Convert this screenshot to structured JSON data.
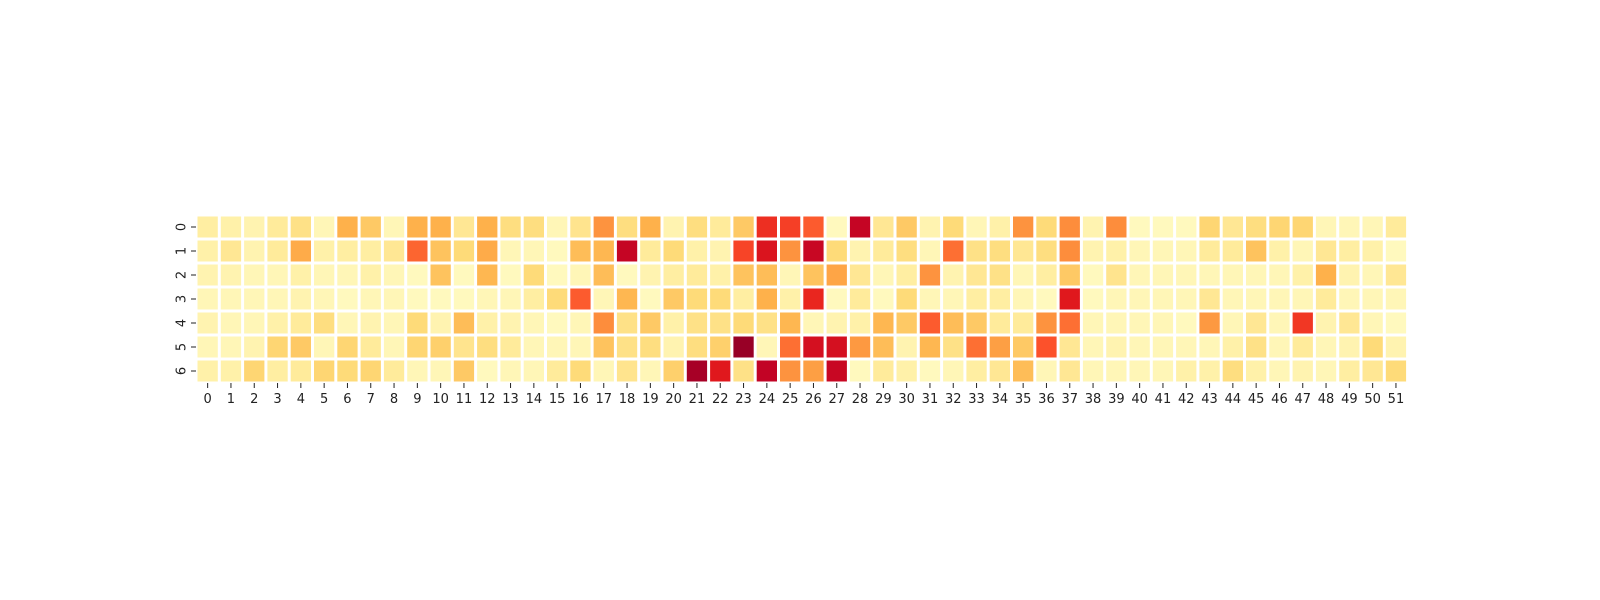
{
  "chart_data": {
    "type": "heatmap",
    "title": "",
    "xlabel": "",
    "ylabel": "",
    "x_tick_labels": [
      "0",
      "1",
      "2",
      "3",
      "4",
      "5",
      "6",
      "7",
      "8",
      "9",
      "10",
      "11",
      "12",
      "13",
      "14",
      "15",
      "16",
      "17",
      "18",
      "19",
      "20",
      "21",
      "22",
      "23",
      "24",
      "25",
      "26",
      "27",
      "28",
      "29",
      "30",
      "31",
      "32",
      "33",
      "34",
      "35",
      "36",
      "37",
      "38",
      "39",
      "40",
      "41",
      "42",
      "43",
      "44",
      "45",
      "46",
      "47",
      "48",
      "49",
      "50",
      "51"
    ],
    "y_tick_labels": [
      "0",
      "1",
      "2",
      "3",
      "4",
      "5",
      "6"
    ],
    "colormap": "YlOrRd",
    "colorbar": false,
    "value_range": [
      0,
      1
    ],
    "cell_gap_color": "#ffffff",
    "values": [
      [
        0.12,
        0.1,
        0.08,
        0.14,
        0.2,
        0.06,
        0.38,
        0.3,
        0.06,
        0.38,
        0.38,
        0.16,
        0.38,
        0.22,
        0.22,
        0.06,
        0.18,
        0.48,
        0.22,
        0.38,
        0.08,
        0.22,
        0.14,
        0.3,
        0.7,
        0.66,
        0.6,
        0.04,
        0.85,
        0.16,
        0.3,
        0.08,
        0.24,
        0.06,
        0.1,
        0.48,
        0.24,
        0.5,
        0.08,
        0.5,
        0.04,
        0.04,
        0.04,
        0.26,
        0.16,
        0.22,
        0.26,
        0.26,
        0.06,
        0.06,
        0.06,
        0.14
      ],
      [
        0.1,
        0.16,
        0.08,
        0.14,
        0.4,
        0.1,
        0.12,
        0.12,
        0.16,
        0.58,
        0.32,
        0.24,
        0.4,
        0.06,
        0.06,
        0.04,
        0.34,
        0.36,
        0.85,
        0.14,
        0.24,
        0.1,
        0.08,
        0.65,
        0.78,
        0.48,
        0.84,
        0.24,
        0.08,
        0.14,
        0.22,
        0.06,
        0.56,
        0.2,
        0.22,
        0.16,
        0.22,
        0.5,
        0.08,
        0.1,
        0.06,
        0.06,
        0.06,
        0.14,
        0.14,
        0.32,
        0.1,
        0.06,
        0.16,
        0.12,
        0.1,
        0.04
      ],
      [
        0.08,
        0.08,
        0.06,
        0.06,
        0.1,
        0.06,
        0.06,
        0.1,
        0.06,
        0.04,
        0.32,
        0.04,
        0.36,
        0.04,
        0.24,
        0.04,
        0.06,
        0.34,
        0.04,
        0.08,
        0.12,
        0.14,
        0.1,
        0.32,
        0.34,
        0.06,
        0.32,
        0.42,
        0.16,
        0.06,
        0.12,
        0.48,
        0.08,
        0.16,
        0.2,
        0.06,
        0.12,
        0.3,
        0.04,
        0.18,
        0.06,
        0.06,
        0.06,
        0.06,
        0.06,
        0.06,
        0.06,
        0.1,
        0.38,
        0.08,
        0.06,
        0.16
      ],
      [
        0.06,
        0.06,
        0.06,
        0.06,
        0.08,
        0.06,
        0.04,
        0.06,
        0.06,
        0.04,
        0.04,
        0.04,
        0.06,
        0.06,
        0.12,
        0.24,
        0.6,
        0.06,
        0.36,
        0.04,
        0.3,
        0.24,
        0.24,
        0.12,
        0.38,
        0.1,
        0.72,
        0.04,
        0.14,
        0.04,
        0.24,
        0.06,
        0.06,
        0.12,
        0.12,
        0.06,
        0.04,
        0.76,
        0.04,
        0.06,
        0.06,
        0.06,
        0.06,
        0.16,
        0.06,
        0.06,
        0.06,
        0.06,
        0.14,
        0.06,
        0.06,
        0.06
      ],
      [
        0.08,
        0.06,
        0.06,
        0.1,
        0.14,
        0.22,
        0.06,
        0.08,
        0.06,
        0.24,
        0.08,
        0.34,
        0.1,
        0.08,
        0.06,
        0.04,
        0.06,
        0.5,
        0.2,
        0.3,
        0.1,
        0.2,
        0.2,
        0.24,
        0.2,
        0.36,
        0.06,
        0.08,
        0.1,
        0.36,
        0.3,
        0.6,
        0.34,
        0.3,
        0.14,
        0.14,
        0.48,
        0.56,
        0.06,
        0.06,
        0.06,
        0.06,
        0.04,
        0.46,
        0.06,
        0.16,
        0.06,
        0.68,
        0.08,
        0.16,
        0.06,
        0.04
      ],
      [
        0.06,
        0.06,
        0.08,
        0.26,
        0.3,
        0.06,
        0.26,
        0.14,
        0.06,
        0.26,
        0.28,
        0.18,
        0.22,
        0.14,
        0.06,
        0.06,
        0.06,
        0.32,
        0.2,
        0.22,
        0.08,
        0.22,
        0.28,
        0.95,
        0.06,
        0.56,
        0.8,
        0.8,
        0.46,
        0.34,
        0.08,
        0.36,
        0.2,
        0.56,
        0.44,
        0.3,
        0.62,
        0.16,
        0.06,
        0.08,
        0.06,
        0.06,
        0.06,
        0.06,
        0.1,
        0.2,
        0.06,
        0.14,
        0.06,
        0.08,
        0.24,
        0.08
      ],
      [
        0.1,
        0.1,
        0.26,
        0.12,
        0.14,
        0.26,
        0.24,
        0.26,
        0.14,
        0.06,
        0.06,
        0.3,
        0.04,
        0.06,
        0.06,
        0.14,
        0.24,
        0.06,
        0.18,
        0.06,
        0.28,
        0.92,
        0.76,
        0.2,
        0.86,
        0.48,
        0.44,
        0.84,
        0.04,
        0.14,
        0.1,
        0.04,
        0.06,
        0.12,
        0.16,
        0.34,
        0.06,
        0.16,
        0.06,
        0.06,
        0.06,
        0.06,
        0.1,
        0.1,
        0.22,
        0.1,
        0.06,
        0.08,
        0.06,
        0.12,
        0.16,
        0.24
      ]
    ]
  }
}
